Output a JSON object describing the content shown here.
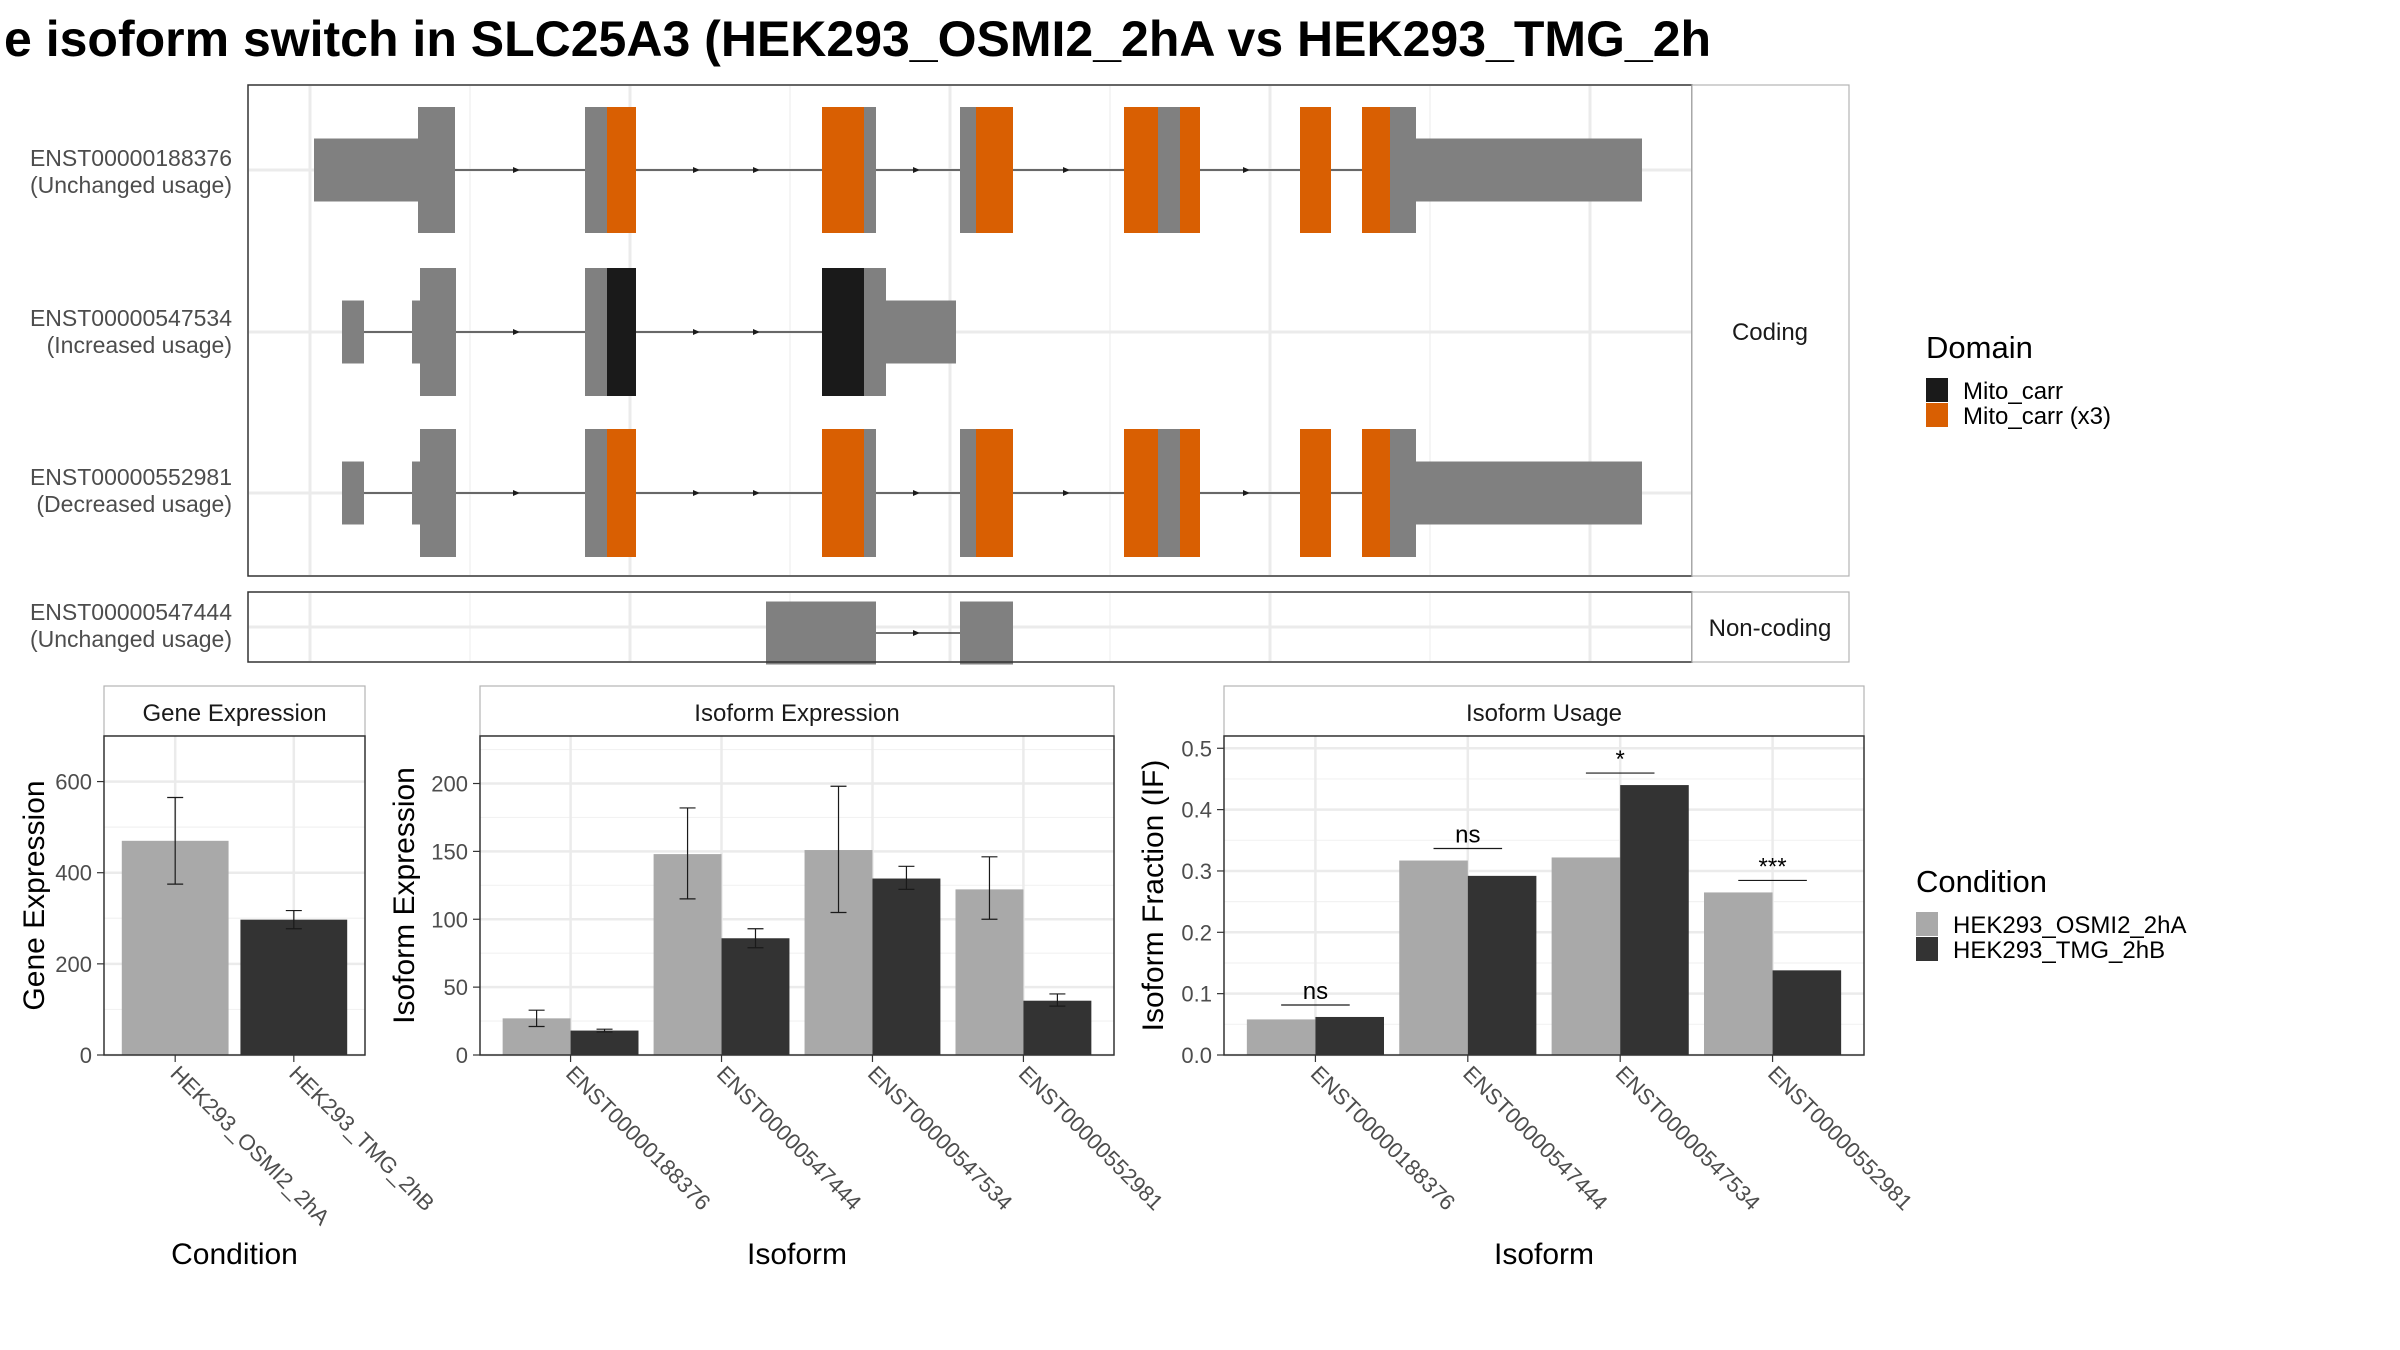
{
  "title": "e isoform switch in SLC25A3 (HEK293_OSMI2_2hA vs HEK293_TMG_2h",
  "colors": {
    "exon": "#808080",
    "domain_mito_carr": "#1a1a1a",
    "domain_mito_carr_x3": "#d95f02",
    "cond_a": "#a9a9a9",
    "cond_b": "#333333",
    "grid": "#ebebeb",
    "panel_border": "#333333",
    "strip_border": "#b3b3b3"
  },
  "structure": {
    "facets": [
      "Coding",
      "Non-coding"
    ],
    "isoforms": [
      {
        "id": "ENST00000188376",
        "usage": "(Unchanged usage)",
        "facet": "Coding"
      },
      {
        "id": "ENST00000547534",
        "usage": "(Increased usage)",
        "facet": "Coding"
      },
      {
        "id": "ENST00000552981",
        "usage": "(Decreased usage)",
        "facet": "Coding"
      },
      {
        "id": "ENST00000547444",
        "usage": "(Unchanged usage)",
        "facet": "Non-coding"
      }
    ]
  },
  "legend_domain": {
    "title": "Domain",
    "items": [
      {
        "label": "Mito_carr",
        "color": "#1a1a1a"
      },
      {
        "label": "Mito_carr (x3)",
        "color": "#d95f02"
      }
    ]
  },
  "legend_condition": {
    "title": "Condition",
    "items": [
      {
        "label": "HEK293_OSMI2_2hA",
        "color": "#a9a9a9"
      },
      {
        "label": "HEK293_TMG_2hB",
        "color": "#333333"
      }
    ]
  },
  "chart_data": [
    {
      "type": "bar",
      "title": "Gene Expression",
      "xlabel": "Condition",
      "ylabel": "Gene Expression",
      "ylim": [
        0,
        700
      ],
      "yticks": [
        0,
        200,
        400,
        600
      ],
      "categories": [
        "HEK293_OSMI2_2hA",
        "HEK293_TMG_2hB"
      ],
      "values": [
        470,
        297
      ],
      "error": [
        [
          375,
          565
        ],
        [
          277,
          317
        ]
      ]
    },
    {
      "type": "bar",
      "title": "Isoform Expression",
      "xlabel": "Isoform",
      "ylabel": "Isoform Expression",
      "ylim": [
        0,
        235
      ],
      "yticks": [
        0,
        50,
        100,
        150,
        200
      ],
      "categories": [
        "ENST00000188376",
        "ENST00000547444",
        "ENST00000547534",
        "ENST00000552981"
      ],
      "series": [
        {
          "name": "HEK293_OSMI2_2hA",
          "values": [
            27,
            148,
            151,
            122
          ],
          "error": [
            [
              21,
              33
            ],
            [
              115,
              182
            ],
            [
              105,
              198
            ],
            [
              100,
              146
            ]
          ]
        },
        {
          "name": "HEK293_TMG_2hB",
          "values": [
            18,
            86,
            130,
            40
          ],
          "error": [
            [
              17,
              19
            ],
            [
              79,
              93
            ],
            [
              122,
              139
            ],
            [
              36,
              45
            ]
          ]
        }
      ]
    },
    {
      "type": "bar",
      "title": "Isoform Usage",
      "xlabel": "Isoform",
      "ylabel": "Isoform Fraction (IF)",
      "ylim": [
        0,
        0.52
      ],
      "yticks": [
        "0.0",
        "0.1",
        "0.2",
        "0.3",
        "0.4",
        "0.5"
      ],
      "categories": [
        "ENST00000188376",
        "ENST00000547444",
        "ENST00000547534",
        "ENST00000552981"
      ],
      "series": [
        {
          "name": "HEK293_OSMI2_2hA",
          "values": [
            0.058,
            0.317,
            0.322,
            0.265
          ]
        },
        {
          "name": "HEK293_TMG_2hB",
          "values": [
            0.062,
            0.292,
            0.44,
            0.138
          ]
        }
      ],
      "significance": [
        "ns",
        "ns",
        "*",
        "***"
      ]
    }
  ]
}
